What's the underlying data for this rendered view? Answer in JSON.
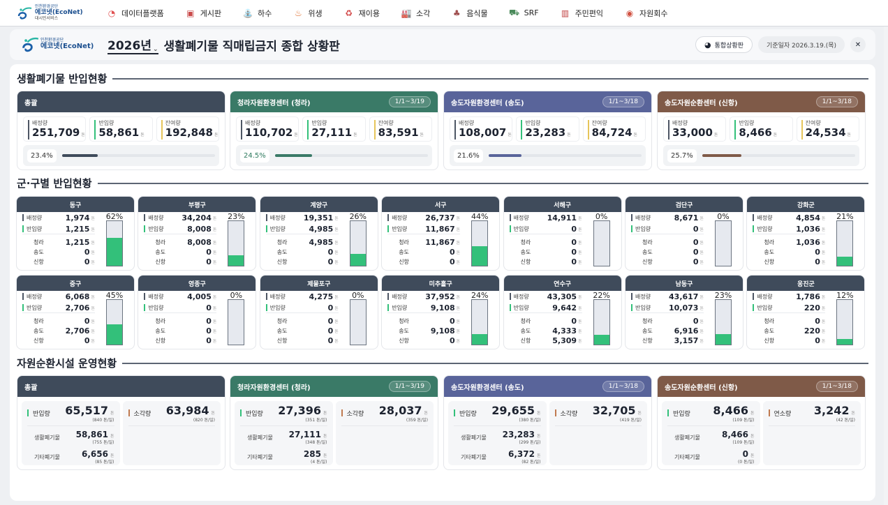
{
  "nav": {
    "brand": {
      "line1": "인천환경공단",
      "line2": "에코넷(EcoNet)",
      "line3": "대시민서비스"
    },
    "items": [
      {
        "label": "데이터플랫폼",
        "icon": "data-platform-icon",
        "glyph": "◔",
        "color": "#e05050"
      },
      {
        "label": "게시판",
        "icon": "board-icon",
        "glyph": "▣",
        "color": "#c94a4a"
      },
      {
        "label": "하수",
        "icon": "faucet-icon",
        "glyph": "⛲",
        "color": "#777"
      },
      {
        "label": "위생",
        "icon": "sanitation-icon",
        "glyph": "♨",
        "color": "#e07030"
      },
      {
        "label": "재이용",
        "icon": "recycle-icon",
        "glyph": "♻",
        "color": "#d04040"
      },
      {
        "label": "소각",
        "icon": "incinerator-icon",
        "glyph": "🏭",
        "color": "#c08040"
      },
      {
        "label": "음식물",
        "icon": "food-waste-icon",
        "glyph": "♣",
        "color": "#a05050"
      },
      {
        "label": "SRF",
        "icon": "srf-icon",
        "glyph": "⛟",
        "color": "#4a8a5a"
      },
      {
        "label": "주민편익",
        "icon": "resident-benefit-icon",
        "glyph": "▥",
        "color": "#c04040"
      },
      {
        "label": "자원회수",
        "icon": "resource-recovery-icon",
        "glyph": "◉",
        "color": "#d05040"
      }
    ]
  },
  "header": {
    "logo_line1": "인천환경공단",
    "logo_line2": "에코넷(EcoNet)",
    "year": "2026년",
    "title": "생활폐기물 직매립금지 종합 상황판",
    "integrated_button": "통합상황판",
    "date_label": "기준일자 2026.3.19.(목)"
  },
  "colors": {
    "total": "#3f4b5b",
    "cheongna": "#3a7a67",
    "songdo": "#59649a",
    "sinhang": "#7f5a48",
    "allocation_marker": "#4d5664",
    "intake_marker": "#33c07a",
    "remaining_marker": "#e6c55a",
    "incineration_marker": "#c07a50",
    "bar_fill": "#33c07a"
  },
  "section1": {
    "title": "생활폐기물 반입현황",
    "unit": "톤",
    "labels": {
      "allocation": "배정량",
      "intake": "반입량",
      "remaining": "잔여량"
    },
    "cards": [
      {
        "name": "총괄",
        "period": "",
        "allocation": "251,709",
        "intake": "58,861",
        "remaining": "192,848",
        "percent": "23.4%",
        "pct": 23.4,
        "color": "#3f4b5b"
      },
      {
        "name": "청라자원환경센터 (청라)",
        "period": "1/1~3/19",
        "allocation": "110,702",
        "intake": "27,111",
        "remaining": "83,591",
        "percent": "24.5%",
        "pct": 24.5,
        "color": "#3a7a67"
      },
      {
        "name": "송도자원환경센터 (송도)",
        "period": "1/1~3/18",
        "allocation": "108,007",
        "intake": "23,283",
        "remaining": "84,724",
        "percent": "21.6%",
        "pct": 21.6,
        "color": "#59649a"
      },
      {
        "name": "송도자원순환센터 (신항)",
        "period": "1/1~3/18",
        "allocation": "33,000",
        "intake": "8,466",
        "remaining": "24,534",
        "percent": "25.7%",
        "pct": 25.7,
        "color": "#7f5a48"
      }
    ]
  },
  "section2": {
    "title": "군·구별 반입현황",
    "unit": "톤",
    "labels": {
      "allocation": "배정량",
      "intake": "반입량",
      "cheongna": "청라",
      "songdo": "송도",
      "sinhang": "신항"
    },
    "districts": [
      {
        "name": "동구",
        "allocation": "1,974",
        "intake": "1,215",
        "cheongna": "1,215",
        "songdo": "0",
        "sinhang": "0",
        "percent": "62%",
        "pct": 62
      },
      {
        "name": "부평구",
        "allocation": "34,204",
        "intake": "8,008",
        "cheongna": "8,008",
        "songdo": "0",
        "sinhang": "0",
        "percent": "23%",
        "pct": 23
      },
      {
        "name": "계양구",
        "allocation": "19,351",
        "intake": "4,985",
        "cheongna": "4,985",
        "songdo": "0",
        "sinhang": "0",
        "percent": "26%",
        "pct": 26
      },
      {
        "name": "서구",
        "allocation": "26,737",
        "intake": "11,867",
        "cheongna": "11,867",
        "songdo": "0",
        "sinhang": "0",
        "percent": "44%",
        "pct": 44
      },
      {
        "name": "서해구",
        "allocation": "14,911",
        "intake": "0",
        "cheongna": "0",
        "songdo": "0",
        "sinhang": "0",
        "percent": "0%",
        "pct": 0
      },
      {
        "name": "검단구",
        "allocation": "8,671",
        "intake": "0",
        "cheongna": "0",
        "songdo": "0",
        "sinhang": "0",
        "percent": "0%",
        "pct": 0
      },
      {
        "name": "강화군",
        "allocation": "4,854",
        "intake": "1,036",
        "cheongna": "1,036",
        "songdo": "0",
        "sinhang": "0",
        "percent": "21%",
        "pct": 21
      },
      {
        "name": "중구",
        "allocation": "6,068",
        "intake": "2,706",
        "cheongna": "0",
        "songdo": "2,706",
        "sinhang": "0",
        "percent": "45%",
        "pct": 45
      },
      {
        "name": "영종구",
        "allocation": "4,005",
        "intake": "0",
        "cheongna": "0",
        "songdo": "0",
        "sinhang": "0",
        "percent": "0%",
        "pct": 0
      },
      {
        "name": "제물포구",
        "allocation": "4,275",
        "intake": "0",
        "cheongna": "0",
        "songdo": "0",
        "sinhang": "0",
        "percent": "0%",
        "pct": 0
      },
      {
        "name": "미추홀구",
        "allocation": "37,952",
        "intake": "9,108",
        "cheongna": "0",
        "songdo": "9,108",
        "sinhang": "0",
        "percent": "24%",
        "pct": 24
      },
      {
        "name": "연수구",
        "allocation": "43,305",
        "intake": "9,642",
        "cheongna": "0",
        "songdo": "4,333",
        "sinhang": "5,309",
        "percent": "22%",
        "pct": 22
      },
      {
        "name": "남동구",
        "allocation": "43,617",
        "intake": "10,073",
        "cheongna": "0",
        "songdo": "6,916",
        "sinhang": "3,157",
        "percent": "23%",
        "pct": 23
      },
      {
        "name": "옹진군",
        "allocation": "1,786",
        "intake": "220",
        "cheongna": "0",
        "songdo": "220",
        "sinhang": "0",
        "percent": "12%",
        "pct": 12
      }
    ]
  },
  "section3": {
    "title": "자원순환시설 운영현황",
    "unit": "톤",
    "labels": {
      "intake": "반입량",
      "household": "생활폐기물",
      "other": "기타폐기물"
    },
    "cards": [
      {
        "name": "총괄",
        "period": "",
        "color": "#3f4b5b",
        "intake": "65,517",
        "intake_daily": "(840 톤/일)",
        "household": "58,861",
        "household_daily": "(755 톤/일)",
        "other": "6,656",
        "other_daily": "(85 톤/일)",
        "output_label": "소각량",
        "output": "63,984",
        "output_daily": "(820 톤/일)"
      },
      {
        "name": "청라자원환경센터 (청라)",
        "period": "1/1~3/19",
        "color": "#3a7a67",
        "intake": "27,396",
        "intake_daily": "(351 톤/일)",
        "household": "27,111",
        "household_daily": "(348 톤/일)",
        "other": "285",
        "other_daily": "(4 톤/일)",
        "output_label": "소각량",
        "output": "28,037",
        "output_daily": "(359 톤/일)"
      },
      {
        "name": "송도자원환경센터 (송도)",
        "period": "1/1~3/18",
        "color": "#59649a",
        "intake": "29,655",
        "intake_daily": "(380 톤/일)",
        "household": "23,283",
        "household_daily": "(299 톤/일)",
        "other": "6,372",
        "other_daily": "(82 톤/일)",
        "output_label": "소각량",
        "output": "32,705",
        "output_daily": "(419 톤/일)"
      },
      {
        "name": "송도자원순환센터 (신항)",
        "period": "1/1~3/18",
        "color": "#7f5a48",
        "intake": "8,466",
        "intake_daily": "(109 톤/일)",
        "household": "8,466",
        "household_daily": "(109 톤/일)",
        "other": "0",
        "other_daily": "(0 톤/일)",
        "output_label": "연소량",
        "output": "3,242",
        "output_daily": "(42 톤/일)"
      }
    ]
  }
}
